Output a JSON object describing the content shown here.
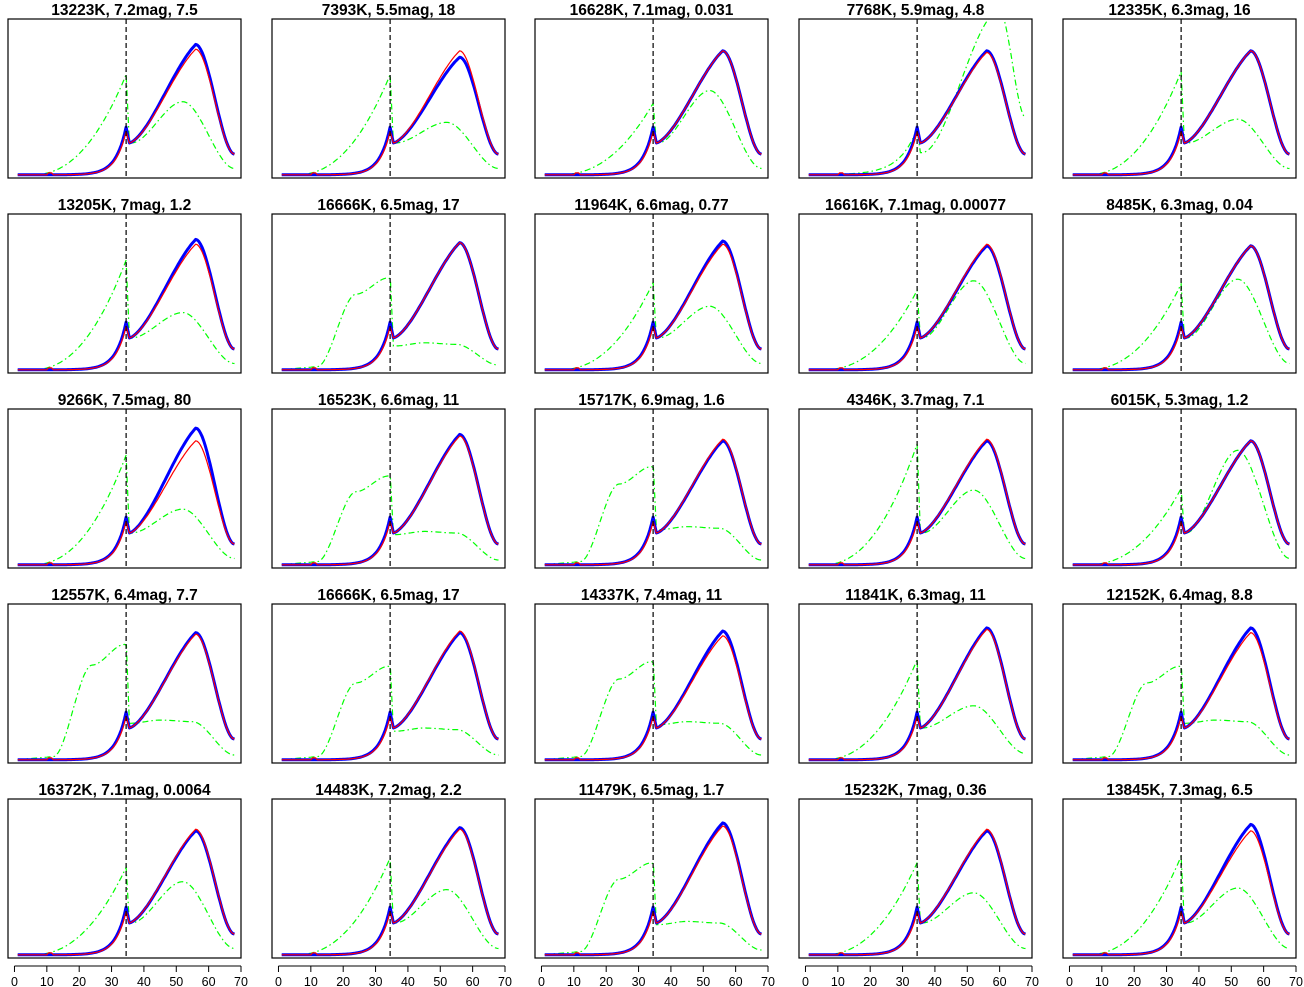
{
  "chart_data": {
    "type": "line",
    "layout": {
      "rows": 5,
      "cols": 5
    },
    "x_axis": {
      "xlim": [
        -2,
        70
      ],
      "ticks": [
        0,
        10,
        20,
        30,
        40,
        50,
        60,
        70
      ]
    },
    "y_axis": {
      "ylim": [
        0,
        1.0
      ],
      "ticks_shown": false
    },
    "vertical_line": {
      "x": 34.5,
      "style": "dashed",
      "color": "#000000"
    },
    "series_colors": {
      "model": "#0000ff",
      "fit": "#ff0000",
      "component": "#00ff00"
    },
    "panels": [
      {
        "title": "13223K, 7.2mag, 7.5",
        "peak": 0.84,
        "fit_peak": 0.81,
        "green_peak": 0.48,
        "green_left": 0.65,
        "green_kind": "A"
      },
      {
        "title": "7393K, 5.5mag, 18",
        "peak": 0.76,
        "fit_peak": 0.8,
        "green_peak": 0.35,
        "green_left": 0.65,
        "green_kind": "A"
      },
      {
        "title": "16628K, 7.1mag, 0.031",
        "peak": 0.8,
        "fit_peak": 0.8,
        "green_peak": 0.55,
        "green_left": 0.47,
        "green_kind": "A"
      },
      {
        "title": "7768K, 5.9mag, 4.8",
        "peak": 0.8,
        "fit_peak": 0.79,
        "green_peak": 1.05,
        "green_left": 0.31,
        "green_kind": "B"
      },
      {
        "title": "12335K, 6.3mag,  16",
        "peak": 0.8,
        "fit_peak": 0.8,
        "green_peak": 0.37,
        "green_left": 0.67,
        "green_kind": "A"
      },
      {
        "title": "13205K,   7mag, 1.2",
        "peak": 0.84,
        "fit_peak": 0.81,
        "green_peak": 0.38,
        "green_left": 0.71,
        "green_kind": "A"
      },
      {
        "title": "16666K, 6.5mag,  17",
        "peak": 0.82,
        "fit_peak": 0.82,
        "green_peak": 0.19,
        "green_left": 0.57,
        "green_kind": "C"
      },
      {
        "title": "11964K, 6.6mag, 0.77",
        "peak": 0.83,
        "fit_peak": 0.81,
        "green_peak": 0.42,
        "green_left": 0.57,
        "green_kind": "A"
      },
      {
        "title": "16616K, 7.1mag, 0.00077",
        "peak": 0.8,
        "fit_peak": 0.81,
        "green_peak": 0.58,
        "green_left": 0.52,
        "green_kind": "A"
      },
      {
        "title": "8485K, 6.3mag, 0.04",
        "peak": 0.8,
        "fit_peak": 0.8,
        "green_peak": 0.59,
        "green_left": 0.56,
        "green_kind": "A"
      },
      {
        "title": "9266K, 7.5mag,  80",
        "peak": 0.88,
        "fit_peak": 0.8,
        "green_peak": 0.37,
        "green_left": 0.71,
        "green_kind": "A"
      },
      {
        "title": "16523K, 6.6mag,  11",
        "peak": 0.84,
        "fit_peak": 0.83,
        "green_peak": 0.23,
        "green_left": 0.55,
        "green_kind": "C"
      },
      {
        "title": "15717K, 6.9mag, 1.6",
        "peak": 0.8,
        "fit_peak": 0.81,
        "green_peak": 0.26,
        "green_left": 0.61,
        "green_kind": "C"
      },
      {
        "title": "4346K, 3.7mag, 7.1",
        "peak": 0.8,
        "fit_peak": 0.81,
        "green_peak": 0.49,
        "green_left": 0.78,
        "green_kind": "A"
      },
      {
        "title": "6015K, 5.3mag, 1.2",
        "peak": 0.8,
        "fit_peak": 0.8,
        "green_peak": 0.74,
        "green_left": 0.5,
        "green_kind": "A"
      },
      {
        "title": "12557K, 6.4mag, 7.7",
        "peak": 0.82,
        "fit_peak": 0.81,
        "green_peak": 0.27,
        "green_left": 0.72,
        "green_kind": "C"
      },
      {
        "title": "16666K, 6.5mag,  17",
        "peak": 0.82,
        "fit_peak": 0.83,
        "green_peak": 0.22,
        "green_left": 0.58,
        "green_kind": "C"
      },
      {
        "title": "14337K, 7.4mag,  11",
        "peak": 0.83,
        "fit_peak": 0.8,
        "green_peak": 0.26,
        "green_left": 0.61,
        "green_kind": "C"
      },
      {
        "title": "11841K, 6.3mag,  11",
        "peak": 0.85,
        "fit_peak": 0.84,
        "green_peak": 0.36,
        "green_left": 0.65,
        "green_kind": "A"
      },
      {
        "title": "12152K, 6.4mag, 8.8",
        "peak": 0.85,
        "fit_peak": 0.82,
        "green_peak": 0.27,
        "green_left": 0.58,
        "green_kind": "C"
      },
      {
        "title": "16372K, 7.1mag, 0.0064",
        "peak": 0.8,
        "fit_peak": 0.81,
        "green_peak": 0.48,
        "green_left": 0.57,
        "green_kind": "A"
      },
      {
        "title": "14483K, 7.2mag, 2.2",
        "peak": 0.82,
        "fit_peak": 0.81,
        "green_peak": 0.43,
        "green_left": 0.63,
        "green_kind": "A"
      },
      {
        "title": "11479K, 6.5mag, 1.7",
        "peak": 0.85,
        "fit_peak": 0.83,
        "green_peak": 0.23,
        "green_left": 0.57,
        "green_kind": "C"
      },
      {
        "title": "15232K,   7mag, 0.36",
        "peak": 0.8,
        "fit_peak": 0.81,
        "green_peak": 0.41,
        "green_left": 0.6,
        "green_kind": "A"
      },
      {
        "title": "13845K, 7.3mag, 6.5",
        "peak": 0.84,
        "fit_peak": 0.8,
        "green_peak": 0.44,
        "green_left": 0.64,
        "green_kind": "A"
      }
    ]
  }
}
